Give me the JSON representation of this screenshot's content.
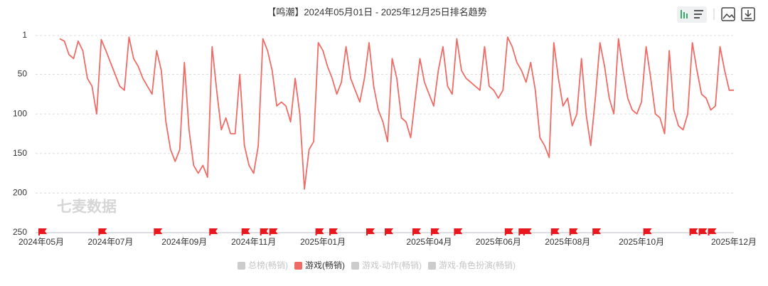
{
  "chart_data": {
    "type": "line",
    "title": "【鸣潮】2024年05月01日 - 2025年12月25日排名趋势",
    "watermark": "七麦数据",
    "categories": [
      "2024年05月",
      null,
      null,
      null,
      null,
      null,
      null,
      null,
      null,
      null,
      null,
      null,
      null,
      null,
      null,
      "2024年07月",
      null,
      null,
      null,
      null,
      null,
      null,
      null,
      null,
      null,
      null,
      null,
      null,
      null,
      null,
      null,
      "2024年09月",
      null,
      null,
      null,
      null,
      null,
      null,
      null,
      null,
      null,
      null,
      null,
      null,
      null,
      null,
      "2024年11月",
      null,
      null,
      null,
      null,
      null,
      null,
      null,
      null,
      null,
      null,
      null,
      null,
      null,
      null,
      "2025年01月",
      null,
      null,
      null,
      null,
      null,
      null,
      null,
      null,
      null,
      null,
      null,
      null,
      null,
      null,
      null,
      null,
      null,
      null,
      null,
      null,
      null,
      null,
      "2025年04月",
      null,
      null,
      null,
      null,
      null,
      null,
      null,
      null,
      null,
      null,
      null,
      null,
      null,
      null,
      "2025年06月",
      null,
      null,
      null,
      null,
      null,
      null,
      null,
      null,
      null,
      null,
      null,
      null,
      null,
      null,
      "2025年08月",
      null,
      null,
      null,
      null,
      null,
      null,
      null,
      null,
      null,
      null,
      null,
      null,
      null,
      null,
      null,
      "2025年10月",
      null,
      null,
      null,
      null,
      null,
      null,
      null,
      null,
      null,
      null,
      null,
      null,
      null,
      null,
      null,
      null,
      null,
      null,
      null,
      "2025年12月"
    ],
    "series": [
      {
        "name": "游戏(畅销)",
        "color": "#ee6b66",
        "values": [
          null,
          null,
          null,
          null,
          5,
          8,
          25,
          30,
          8,
          20,
          55,
          65,
          100,
          6,
          20,
          35,
          50,
          65,
          70,
          3,
          30,
          40,
          55,
          65,
          75,
          20,
          45,
          110,
          145,
          160,
          145,
          35,
          120,
          165,
          175,
          165,
          180,
          15,
          70,
          120,
          105,
          125,
          125,
          50,
          140,
          165,
          175,
          140,
          5,
          20,
          45,
          90,
          85,
          90,
          110,
          55,
          100,
          195,
          145,
          135,
          10,
          20,
          40,
          55,
          75,
          60,
          15,
          55,
          70,
          85,
          55,
          10,
          65,
          95,
          110,
          135,
          30,
          55,
          105,
          110,
          130,
          80,
          30,
          60,
          75,
          90,
          45,
          15,
          65,
          75,
          5,
          45,
          55,
          60,
          65,
          70,
          15,
          65,
          70,
          80,
          70,
          3,
          15,
          35,
          45,
          60,
          35,
          70,
          130,
          140,
          155,
          10,
          55,
          90,
          80,
          115,
          100,
          30,
          100,
          140,
          80,
          10,
          40,
          80,
          100,
          5,
          45,
          80,
          95,
          100,
          85,
          15,
          55,
          100,
          105,
          125,
          20,
          95,
          115,
          120,
          100,
          10,
          45,
          75,
          80,
          95,
          90,
          15,
          45,
          70,
          70
        ]
      }
    ],
    "inactive_legend": [
      {
        "name": "总榜(畅销)"
      },
      {
        "name": "游戏-动作(畅销)"
      },
      {
        "name": "游戏-角色扮演(畅销)"
      }
    ],
    "inactive_color": "#cccccc",
    "flags": [
      0,
      13,
      25,
      37,
      44,
      48,
      50,
      60,
      63,
      71,
      75,
      81,
      85,
      90,
      101,
      104,
      105,
      111,
      115,
      120,
      131,
      141,
      143,
      145
    ],
    "flag_color": "#e8191e",
    "ylim": [
      1,
      250
    ],
    "yticks": [
      1,
      50,
      100,
      150,
      200,
      250
    ],
    "y_inverted": true,
    "grid": true
  }
}
